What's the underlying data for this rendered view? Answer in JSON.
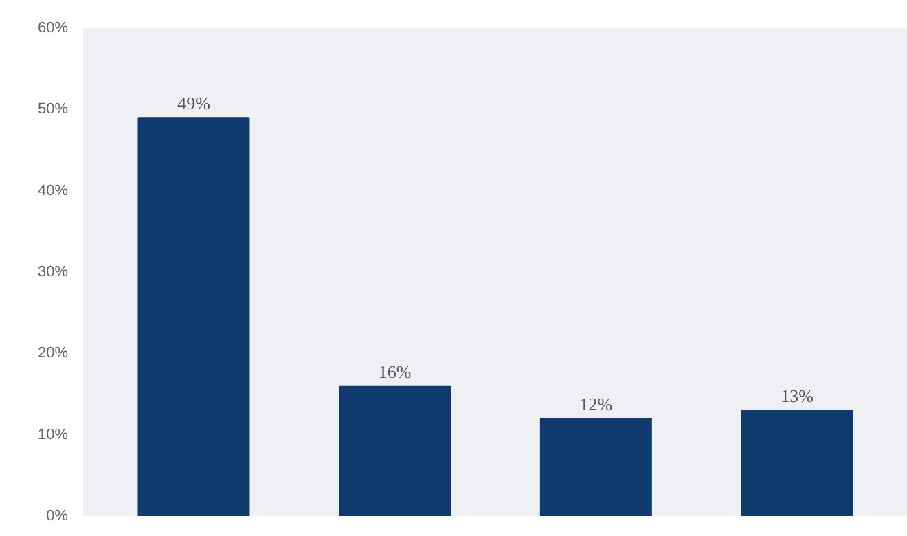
{
  "chart_data": {
    "type": "bar",
    "categories": [
      null,
      null,
      null,
      null
    ],
    "values": [
      49,
      16,
      12,
      13
    ],
    "color": "#0f3a6e",
    "value_labels": [
      "49%",
      "16%",
      "12%",
      "13%"
    ],
    "ylim": [
      0,
      60
    ],
    "yticks": [
      {
        "value": 0,
        "label": "0%"
      },
      {
        "value": 10,
        "label": "10%"
      },
      {
        "value": 20,
        "label": "20%"
      },
      {
        "value": 30,
        "label": "30%"
      },
      {
        "value": 40,
        "label": "40%"
      },
      {
        "value": 50,
        "label": "50%"
      },
      {
        "value": 60,
        "label": "60%"
      }
    ],
    "grid": false
  }
}
